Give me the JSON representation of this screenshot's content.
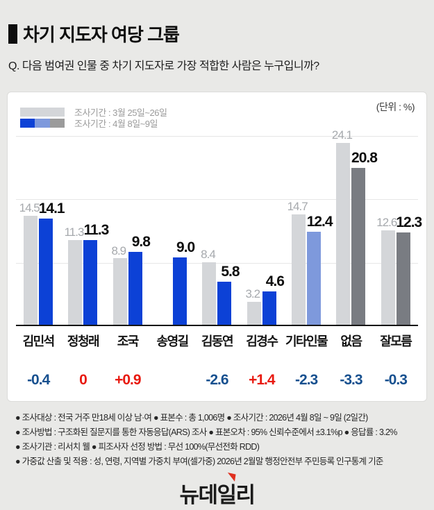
{
  "header": {
    "title": "차기 지도자 여당 그룹",
    "question": "Q. 다음 범여권 인물 중 차기 지도자로 가장 적합한 사람은 누구입니까?"
  },
  "chart": {
    "unit_label": "(단위 : %)",
    "legend": [
      {
        "label": "조사기간 : 3월 25일~26일",
        "swatch": "gray"
      },
      {
        "label": "조사기간 : 4월 8일~9일",
        "swatch": "blue-periwinkle-gray"
      }
    ]
  },
  "chart_data": {
    "type": "bar",
    "title": "차기 지도자 여당 그룹",
    "unit": "%",
    "ylim": [
      0,
      25
    ],
    "gridlines": [
      8.33,
      16.67,
      25
    ],
    "grid": true,
    "legend_position": "top-left",
    "categories": [
      "김민석",
      "정청래",
      "조국",
      "송영길",
      "김동연",
      "김경수",
      "기타인물",
      "없음",
      "잘모름"
    ],
    "series": [
      {
        "name": "조사기간 : 3월 25일~26일",
        "values": [
          14.5,
          11.3,
          8.9,
          null,
          8.4,
          3.2,
          14.7,
          24.1,
          12.6
        ],
        "color": "#d4d6d9"
      },
      {
        "name": "조사기간 : 4월 8일~9일",
        "values": [
          14.1,
          11.3,
          9.8,
          9.0,
          5.8,
          4.6,
          12.4,
          20.8,
          12.3
        ],
        "colors": [
          "#0c41d6",
          "#0c41d6",
          "#0c41d6",
          "#0c41d6",
          "#0c41d6",
          "#0c41d6",
          "#7e99dc",
          "#797c82",
          "#797c82"
        ]
      }
    ],
    "differences": [
      {
        "text": "-0.4",
        "tone": "down"
      },
      {
        "text": "0",
        "tone": "up"
      },
      {
        "text": "+0.9",
        "tone": "up"
      },
      null,
      {
        "text": "-2.6",
        "tone": "down"
      },
      {
        "text": "+1.4",
        "tone": "up"
      },
      {
        "text": "-2.3",
        "tone": "down"
      },
      {
        "text": "-3.3",
        "tone": "down"
      },
      {
        "text": "-0.3",
        "tone": "down"
      }
    ]
  },
  "colors": {
    "page_background": "#e9e9e7",
    "card_background": "#ffffff",
    "bar_gray": "#d4d6d9",
    "bar_blue": "#0c41d6",
    "bar_periwinkle": "#7e99dc",
    "bar_dark_gray": "#797c82",
    "legend_gray_segment": "#9b9b9b",
    "value_label_gray": "#a6a9ad",
    "value_label_black": "#0d0d0d",
    "diff_negative": "#17508f",
    "diff_positive": "#e8190f",
    "logo_accent_red": "#e03020"
  },
  "footnotes": [
    "● 조사대상 : 전국 거주 만18세 이상 남·여  ● 표본수 : 총 1,006명  ● 조사기간 : 2026년 4월 8일 ~ 9일 (2일간)",
    "● 조사방법 : 구조화된 질문지를 통한 자동응답(ARS) 조사  ● 표본오차 : 95% 신뢰수준에서 ±3.1%p  ● 응답률 : 3.2%",
    "● 조사기관 : 리서치 웰  ● 피조사자 선정 방법 : 무선 100%(무선전화 RDD)",
    "● 가중값 산출 및 적용 : 성, 연령, 지역별 가중치 부여(셀가중) 2026년 2월말 행정안전부 주민등록 인구통계 기준"
  ],
  "logo": {
    "text": "뉴데일리"
  }
}
